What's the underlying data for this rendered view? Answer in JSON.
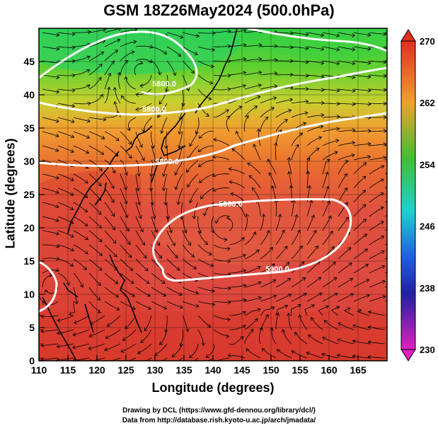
{
  "title": "GSM 18Z26May2024 (500.0hPa)",
  "xlabel": "Longitude (degrees)",
  "ylabel": "Latitude (degrees)",
  "credit_line1": "Drawing by DCL (https://www.gfd-dennou.org/library/dcl/)",
  "credit_line2": "Data from http://database.rish.kyoto-u.ac.jp/arch/jmadata/",
  "map": {
    "lon_range": [
      110,
      170
    ],
    "lat_range": [
      0,
      50
    ],
    "x_ticks": [
      "110",
      "115",
      "120",
      "125",
      "130",
      "135",
      "140",
      "145",
      "150",
      "155",
      "160",
      "165"
    ],
    "y_ticks": [
      "0",
      "5",
      "10",
      "15",
      "20",
      "25",
      "30",
      "35",
      "40",
      "45"
    ],
    "colorbar_labels": [
      "270",
      "262",
      "254",
      "246",
      "238",
      "230"
    ],
    "contour_labels": [
      "5800.0",
      "5800.0",
      "5800.0",
      "5900.0",
      "5900.0"
    ],
    "colors": {
      "high": "#d94030",
      "mid": "#f0a030",
      "low": "#40c030",
      "cold": "#20d0d0",
      "contour": "#ffffff",
      "streamline": "#000000"
    }
  }
}
